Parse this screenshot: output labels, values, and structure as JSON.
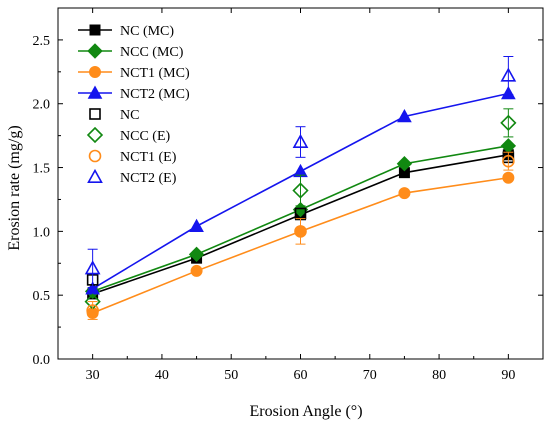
{
  "chart_data": {
    "type": "line",
    "title": "",
    "xlabel": "Erosion Angle (°)",
    "ylabel": "Erosion rate (mg/g)",
    "xlim": [
      25,
      95
    ],
    "ylim": [
      0.0,
      2.75
    ],
    "xticks": [
      "30",
      "40",
      "50",
      "60",
      "70",
      "80",
      "90"
    ],
    "yticks": [
      "0.0",
      "0.5",
      "1.0",
      "1.5",
      "2.0",
      "2.5"
    ],
    "grid": false,
    "legend_position": "top-left",
    "series": [
      {
        "name": "NC (MC)",
        "kind": "model",
        "marker": "square-filled",
        "color": "#000000",
        "x": [
          30,
          45,
          60,
          75,
          90
        ],
        "y": [
          0.51,
          0.79,
          1.13,
          1.46,
          1.6
        ]
      },
      {
        "name": "NCC (MC)",
        "kind": "model",
        "marker": "diamond-filled",
        "color": "#118811",
        "x": [
          30,
          45,
          60,
          75,
          90
        ],
        "y": [
          0.53,
          0.82,
          1.17,
          1.53,
          1.67
        ]
      },
      {
        "name": "NCT1 (MC)",
        "kind": "model",
        "marker": "circle-filled",
        "color": "#FF8C1A",
        "x": [
          30,
          45,
          60,
          75,
          90
        ],
        "y": [
          0.36,
          0.69,
          1.0,
          1.3,
          1.42
        ]
      },
      {
        "name": "NCT2 (MC)",
        "kind": "model",
        "marker": "triangle-filled",
        "color": "#1515EE",
        "x": [
          30,
          45,
          60,
          75,
          90
        ],
        "y": [
          0.55,
          1.04,
          1.47,
          1.9,
          2.08
        ]
      },
      {
        "name": "NC",
        "kind": "experiment",
        "marker": "square-open",
        "color": "#000000",
        "x": [
          30,
          60,
          90
        ],
        "y": [
          0.62,
          1.14,
          1.58
        ],
        "err": [
          0.0,
          0.0,
          0.0
        ]
      },
      {
        "name": "NCC (E)",
        "kind": "experiment",
        "marker": "diamond-open",
        "color": "#118811",
        "x": [
          30,
          60,
          90
        ],
        "y": [
          0.45,
          1.32,
          1.85
        ],
        "err": [
          0.0,
          0.12,
          0.11
        ]
      },
      {
        "name": "NCT1 (E)",
        "kind": "experiment",
        "marker": "circle-open",
        "color": "#FF8C1A",
        "x": [
          30,
          60,
          90
        ],
        "y": [
          0.38,
          1.0,
          1.55
        ],
        "err": [
          0.07,
          0.1,
          0.07
        ]
      },
      {
        "name": "NCT2 (E)",
        "kind": "experiment",
        "marker": "triangle-open",
        "color": "#1515EE",
        "x": [
          30,
          60,
          90
        ],
        "y": [
          0.71,
          1.7,
          2.22
        ],
        "err": [
          0.15,
          0.12,
          0.15
        ]
      }
    ]
  }
}
